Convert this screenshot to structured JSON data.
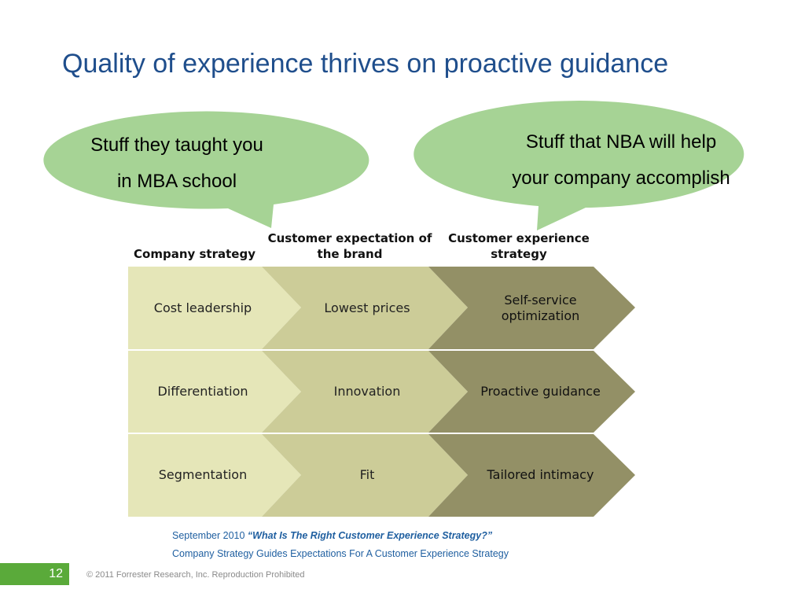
{
  "slide": {
    "title": "Quality of experience thrives on proactive guidance",
    "page_number": "12",
    "copyright": "© 2011 Forrester Research, Inc. Reproduction Prohibited"
  },
  "bubbles": {
    "left": {
      "line1": "Stuff they taught you",
      "line2": "in MBA school"
    },
    "right": {
      "line1": "Stuff that NBA will help",
      "line2": "your company accomplish"
    }
  },
  "matrix": {
    "headers": [
      "Company strategy",
      "Customer expectation of the brand",
      "Customer experience strategy"
    ],
    "rows": [
      [
        "Cost leadership",
        "Lowest prices",
        "Self-service optimization"
      ],
      [
        "Differentiation",
        "Innovation",
        "Proactive guidance"
      ],
      [
        "Segmentation",
        "Fit",
        "Tailored intimacy"
      ]
    ]
  },
  "source": {
    "date": "September 2010",
    "report": "“What Is The Right Customer Experience Strategy?”",
    "caption": "Company Strategy Guides Expectations For A Customer Experience Strategy"
  },
  "colors": {
    "title": "#1f4e8c",
    "bubble_fill": "#a6d395",
    "col1_fill": "#e5e6b8",
    "col2_fill": "#cccc98",
    "col3_fill": "#939066",
    "source_text": "#1f5fa0",
    "page_bar": "#5aaa3a"
  }
}
